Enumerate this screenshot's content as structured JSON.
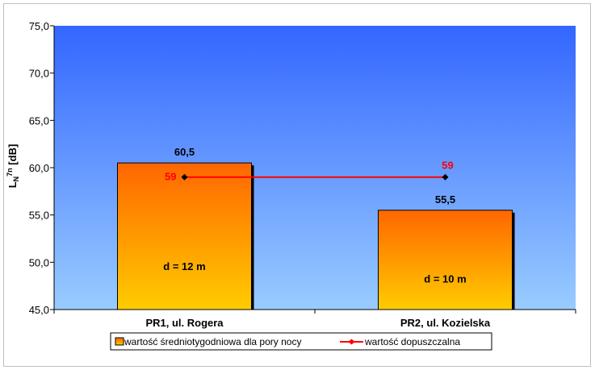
{
  "chart_data": {
    "type": "bar",
    "ylabel": "L_N^7n [dB]",
    "ylim": [
      45,
      75
    ],
    "yticks": [
      "45,0",
      "50,0",
      "55,0",
      "60,0",
      "65,0",
      "70,0",
      "75,0"
    ],
    "categories": [
      "PR1, ul. Rogera",
      "PR2, ul. Kozielska"
    ],
    "series": [
      {
        "name": "wartość średniotygodniowa dla pory nocy",
        "values": [
          60.5,
          55.5
        ],
        "labels": [
          "60,5",
          "55,5"
        ],
        "annotations": [
          "d = 12 m",
          "d = 10 m"
        ],
        "color_top": "#ff6600",
        "color_bottom": "#ffcc00"
      },
      {
        "name": "wartość dopuszczalna",
        "type": "line",
        "values": [
          59,
          59
        ],
        "labels": [
          "59",
          "59"
        ],
        "color": "#ff0000"
      }
    ],
    "grid": false,
    "legend": "bottom",
    "plot_background": {
      "top": "#3366ff",
      "bottom": "#99ccff"
    }
  }
}
